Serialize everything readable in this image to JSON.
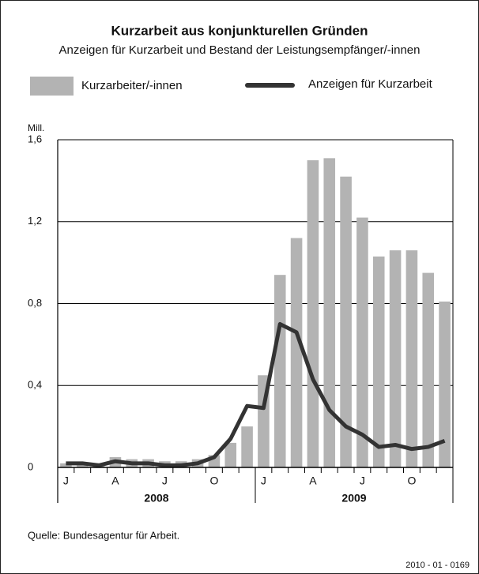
{
  "chart_data": {
    "type": "bar",
    "title": "Kurzarbeit aus konjunkturellen Gründen",
    "subtitle": "Anzeigen für Kurzarbeit und Bestand der Leistungsempfänger/-innen",
    "y_unit": "Mill.",
    "categories": [
      "J",
      null,
      null,
      "A",
      null,
      null,
      "J",
      null,
      null,
      "O",
      null,
      null,
      "J",
      null,
      null,
      "A",
      null,
      null,
      "J",
      null,
      null,
      "O",
      null,
      null
    ],
    "years": [
      "2008",
      "2009"
    ],
    "series": [
      {
        "name": "Kurzarbeiter/-innen",
        "type": "bar",
        "color": "#b3b3b3",
        "values": [
          0.02,
          0.02,
          0.02,
          0.05,
          0.04,
          0.04,
          0.03,
          0.03,
          0.04,
          0.06,
          0.12,
          0.2,
          0.45,
          0.94,
          1.12,
          1.5,
          1.51,
          1.42,
          1.22,
          1.03,
          1.06,
          1.06,
          0.95,
          0.81
        ]
      },
      {
        "name": "Anzeigen für Kurzarbeit",
        "type": "line",
        "color": "#333333",
        "values": [
          0.02,
          0.02,
          0.01,
          0.03,
          0.02,
          0.02,
          0.01,
          0.01,
          0.02,
          0.05,
          0.14,
          0.3,
          0.29,
          0.7,
          0.66,
          0.43,
          0.28,
          0.2,
          0.16,
          0.1,
          0.11,
          0.09,
          0.1,
          0.13
        ]
      }
    ],
    "ylim": [
      0,
      1.6
    ],
    "yticks": [
      0,
      {
        "value": 0.4,
        "label": "0,4"
      },
      {
        "value": 0.8,
        "label": "0,8"
      },
      {
        "value": 1.2,
        "label": "1,2"
      },
      {
        "value": 1.6,
        "label": "1,6"
      }
    ],
    "grid": true,
    "source": "Quelle: Bundesagentur für Arbeit.",
    "footer": "2010 - 01 - 0169"
  }
}
